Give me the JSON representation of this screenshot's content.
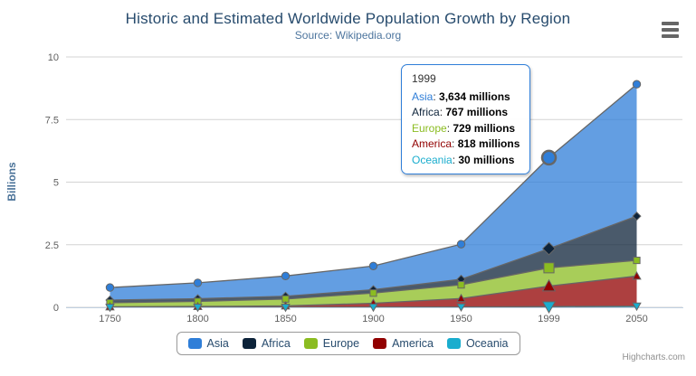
{
  "chart": {
    "title": "Historic and Estimated Worldwide Population Growth by Region",
    "subtitle": "Source: Wikipedia.org",
    "credits": "Highcharts.com",
    "yaxis_title": "Billions"
  },
  "chart_data": {
    "type": "area",
    "stacking": "normal",
    "title": "Historic and Estimated Worldwide Population Growth by Region",
    "subtitle": "Source: Wikipedia.org",
    "xlabel": "",
    "ylabel": "Billions",
    "unit": "millions",
    "ylim": [
      0,
      10
    ],
    "yticks": [
      {
        "value": 0,
        "label": "0"
      },
      {
        "value": 2.5,
        "label": "2.5"
      },
      {
        "value": 5,
        "label": "5"
      },
      {
        "value": 7.5,
        "label": "7.5"
      },
      {
        "value": 10,
        "label": "10"
      }
    ],
    "categories": [
      "1750",
      "1800",
      "1850",
      "1900",
      "1950",
      "1999",
      "2050"
    ],
    "series": [
      {
        "name": "Asia",
        "color": "#2f7ed8",
        "marker": "circle",
        "values": [
          502,
          635,
          809,
          947,
          1402,
          3634,
          5268
        ]
      },
      {
        "name": "Africa",
        "color": "#0d233a",
        "marker": "diamond",
        "values": [
          106,
          107,
          111,
          133,
          221,
          767,
          1766
        ]
      },
      {
        "name": "Europe",
        "color": "#8bbc21",
        "marker": "square",
        "values": [
          163,
          203,
          276,
          408,
          547,
          729,
          628
        ]
      },
      {
        "name": "America",
        "color": "#910000",
        "marker": "triangle",
        "values": [
          18,
          31,
          54,
          156,
          339,
          818,
          1201
        ]
      },
      {
        "name": "Oceania",
        "color": "#1aadce",
        "marker": "triangle-down",
        "values": [
          2,
          2,
          2,
          6,
          13,
          30,
          46
        ]
      }
    ],
    "hover_index": 5,
    "fill_opacity": 0.75,
    "line_color": "#666666",
    "grid_color": "#d3d3d3",
    "axis_line_color": "#c0d0e0",
    "axis_label_color": "#606060",
    "legend_position": "bottom-center",
    "grid": true
  },
  "tooltip": {
    "header": "1999",
    "border_color": "#2f7ed8",
    "rows": [
      {
        "name": "Asia",
        "color": "#2f7ed8",
        "value": "3,634 millions"
      },
      {
        "name": "Africa",
        "color": "#0d233a",
        "value": "767 millions"
      },
      {
        "name": "Europe",
        "color": "#8bbc21",
        "value": "729 millions"
      },
      {
        "name": "America",
        "color": "#910000",
        "value": "818 millions"
      },
      {
        "name": "Oceania",
        "color": "#1aadce",
        "value": "30 millions"
      }
    ]
  },
  "icons": {
    "context_menu": "hamburger-menu-icon"
  }
}
